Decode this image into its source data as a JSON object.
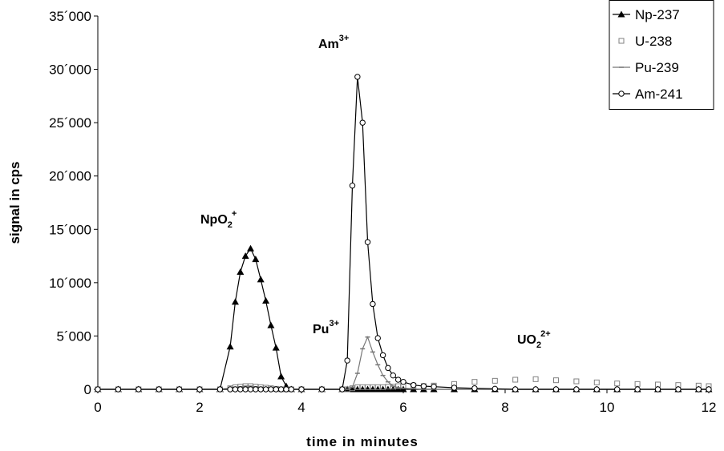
{
  "chart_data": {
    "type": "line",
    "xlabel": "time in minutes",
    "ylabel": "signal in cps",
    "x": [
      0,
      0.4,
      0.8,
      1.2,
      1.6,
      2.0,
      2.4,
      2.6,
      2.7,
      2.8,
      2.9,
      3.0,
      3.1,
      3.2,
      3.3,
      3.4,
      3.5,
      3.6,
      3.7,
      3.8,
      4.0,
      4.4,
      4.8,
      4.9,
      5.0,
      5.1,
      5.2,
      5.3,
      5.4,
      5.5,
      5.6,
      5.7,
      5.8,
      5.9,
      6.0,
      6.2,
      6.4,
      6.6,
      7.0,
      7.4,
      7.8,
      8.2,
      8.6,
      9.0,
      9.4,
      9.8,
      10.2,
      10.6,
      11.0,
      11.4,
      11.8,
      12.0
    ],
    "series": [
      {
        "name": "Np-237",
        "color": "#000000",
        "marker": "triangle",
        "line": true,
        "values": [
          0,
          0,
          0,
          0,
          0,
          0,
          0,
          4000,
          8200,
          11000,
          12500,
          13200,
          12200,
          10300,
          8300,
          6000,
          3900,
          1200,
          300,
          0,
          0,
          0,
          0,
          0,
          0,
          0,
          0,
          0,
          0,
          0,
          0,
          0,
          0,
          0,
          0,
          0,
          0,
          0,
          0,
          0,
          0,
          0,
          0,
          0,
          0,
          0,
          0,
          0,
          0,
          0,
          0,
          0
        ]
      },
      {
        "name": "U-238",
        "color": "#808080",
        "marker": "square",
        "line": false,
        "values": [
          0,
          0,
          0,
          0,
          0,
          0,
          0,
          100,
          200,
          250,
          300,
          300,
          250,
          200,
          150,
          100,
          50,
          0,
          0,
          0,
          0,
          0,
          0,
          0,
          100,
          200,
          200,
          200,
          200,
          200,
          200,
          250,
          250,
          300,
          300,
          350,
          300,
          350,
          500,
          700,
          800,
          900,
          950,
          850,
          750,
          650,
          550,
          500,
          450,
          400,
          350,
          300
        ]
      },
      {
        "name": "Pu-239",
        "color": "#777777",
        "marker": "dash",
        "line": true,
        "values": [
          0,
          0,
          0,
          0,
          0,
          0,
          0,
          100,
          200,
          250,
          300,
          300,
          250,
          200,
          150,
          100,
          50,
          0,
          0,
          0,
          0,
          0,
          0,
          0,
          200,
          1500,
          3800,
          4900,
          3500,
          2300,
          1300,
          700,
          300,
          150,
          100,
          50,
          0,
          0,
          0,
          0,
          0,
          0,
          0,
          0,
          0,
          0,
          0,
          0,
          0,
          0,
          0,
          0
        ]
      },
      {
        "name": "Am-241",
        "color": "#000000",
        "marker": "circle",
        "line": true,
        "values": [
          0,
          0,
          0,
          0,
          0,
          0,
          0,
          0,
          0,
          0,
          0,
          0,
          0,
          0,
          0,
          0,
          0,
          0,
          0,
          0,
          0,
          0,
          0,
          2700,
          19100,
          29300,
          25000,
          13800,
          8000,
          4800,
          3200,
          2000,
          1300,
          900,
          700,
          400,
          300,
          250,
          150,
          100,
          50,
          0,
          0,
          0,
          0,
          0,
          0,
          0,
          0,
          0,
          0,
          0
        ]
      }
    ],
    "xlim": [
      0,
      12
    ],
    "xticks": [
      0,
      2,
      4,
      6,
      8,
      10,
      12
    ],
    "ylim": [
      0,
      35000
    ],
    "yticks": [
      0,
      {
        "value": 5000,
        "label": "5´000"
      },
      {
        "value": 10000,
        "label": "10´000"
      },
      {
        "value": 15000,
        "label": "15´000"
      },
      {
        "value": 20000,
        "label": "20´000"
      },
      {
        "value": 25000,
        "label": "25´000"
      },
      {
        "value": 30000,
        "label": "30´000"
      },
      {
        "value": 35000,
        "label": "35´000"
      }
    ],
    "legend": "top-right",
    "annotations": [
      {
        "text": "NpO",
        "sub": "2",
        "sup": "+"
      },
      {
        "text": "Am",
        "sup": "3+"
      },
      {
        "text": "Pu",
        "sup": "3+"
      },
      {
        "text": "UO",
        "sub": "2",
        "sup": "2+"
      }
    ]
  }
}
